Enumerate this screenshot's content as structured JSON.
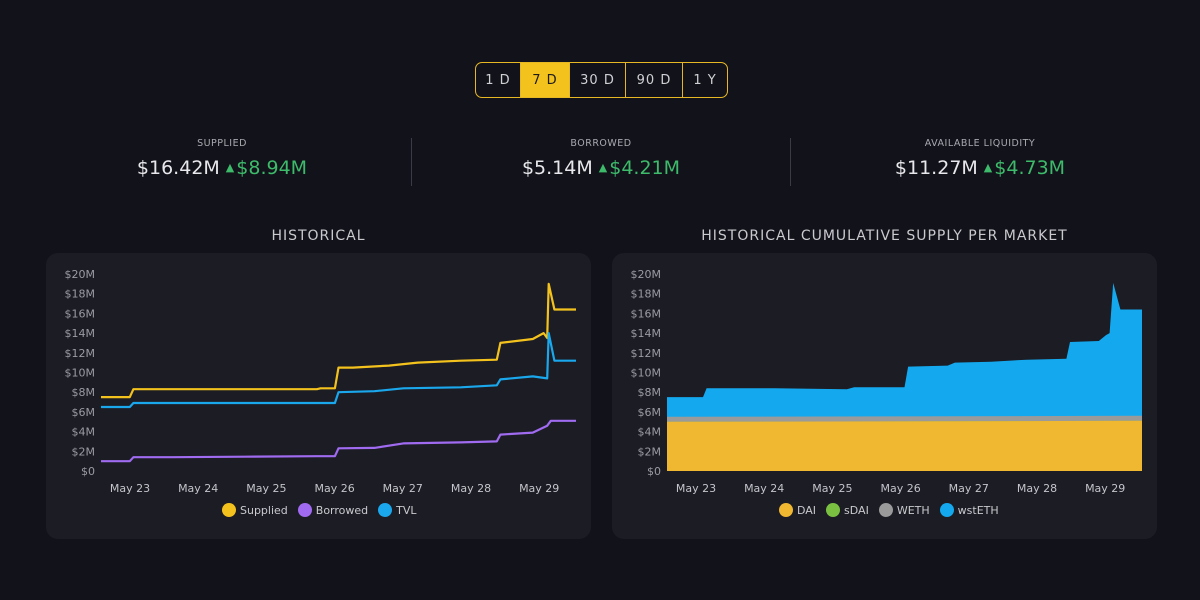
{
  "range": {
    "options": [
      "1 D",
      "7 D",
      "30 D",
      "90 D",
      "1 Y"
    ],
    "selected": "7 D"
  },
  "stats": [
    {
      "label": "SUPPLIED",
      "value": "$16.42M",
      "change": "$8.94M"
    },
    {
      "label": "BORROWED",
      "value": "$5.14M",
      "change": "$4.21M"
    },
    {
      "label": "AVAILABLE LIQUIDITY",
      "value": "$11.27M",
      "change": "$4.73M"
    }
  ],
  "colors": {
    "accent": "#f4c21d",
    "positive": "#3dbb6a",
    "supplied": "#f4c21d",
    "borrowed": "#a06bf0",
    "tvl": "#1ba7ec",
    "dai": "#f0b731",
    "sdai": "#7ac142",
    "weth": "#9a9a9a",
    "wsteth": "#14a9ee"
  },
  "chart_data": [
    {
      "type": "line",
      "title": "HISTORICAL",
      "categories": [
        "May 23",
        "May 24",
        "May 25",
        "May 26",
        "May 27",
        "May 28",
        "May 29"
      ],
      "yticks": [
        "$0",
        "$2M",
        "$4M",
        "$6M",
        "$8M",
        "$10M",
        "$12M",
        "$14M",
        "$16M",
        "$18M",
        "$20M"
      ],
      "ylim": [
        0,
        20
      ],
      "xlim": [
        0,
        6.6
      ],
      "legend": [
        "Supplied",
        "Borrowed",
        "TVL"
      ],
      "series": [
        {
          "name": "Supplied",
          "color": "#f4c21d",
          "points": [
            [
              0,
              7.5
            ],
            [
              0.4,
              7.5
            ],
            [
              0.45,
              8.3
            ],
            [
              1.0,
              8.3
            ],
            [
              2.0,
              8.3
            ],
            [
              3.0,
              8.3
            ],
            [
              3.05,
              8.4
            ],
            [
              3.25,
              8.4
            ],
            [
              3.3,
              10.5
            ],
            [
              3.5,
              10.5
            ],
            [
              4.0,
              10.7
            ],
            [
              4.4,
              11.0
            ],
            [
              5.0,
              11.2
            ],
            [
              5.5,
              11.3
            ],
            [
              5.55,
              13.0
            ],
            [
              6.0,
              13.4
            ],
            [
              6.15,
              14.0
            ],
            [
              6.2,
              13.5
            ],
            [
              6.22,
              19.0
            ],
            [
              6.3,
              16.4
            ],
            [
              6.6,
              16.4
            ]
          ]
        },
        {
          "name": "Borrowed",
          "color": "#a06bf0",
          "points": [
            [
              0,
              1.0
            ],
            [
              0.4,
              1.0
            ],
            [
              0.45,
              1.4
            ],
            [
              1.0,
              1.4
            ],
            [
              2.0,
              1.45
            ],
            [
              3.0,
              1.5
            ],
            [
              3.25,
              1.5
            ],
            [
              3.3,
              2.3
            ],
            [
              3.8,
              2.35
            ],
            [
              4.2,
              2.8
            ],
            [
              5.0,
              2.9
            ],
            [
              5.5,
              3.0
            ],
            [
              5.55,
              3.7
            ],
            [
              6.0,
              3.9
            ],
            [
              6.2,
              4.6
            ],
            [
              6.25,
              5.1
            ],
            [
              6.6,
              5.1
            ]
          ]
        },
        {
          "name": "TVL",
          "color": "#1ba7ec",
          "points": [
            [
              0,
              6.5
            ],
            [
              0.4,
              6.5
            ],
            [
              0.45,
              6.9
            ],
            [
              1.0,
              6.9
            ],
            [
              2.0,
              6.9
            ],
            [
              3.0,
              6.9
            ],
            [
              3.25,
              6.9
            ],
            [
              3.3,
              8.0
            ],
            [
              3.8,
              8.1
            ],
            [
              4.2,
              8.4
            ],
            [
              5.0,
              8.5
            ],
            [
              5.5,
              8.7
            ],
            [
              5.55,
              9.3
            ],
            [
              6.0,
              9.6
            ],
            [
              6.2,
              9.4
            ],
            [
              6.22,
              14.0
            ],
            [
              6.3,
              11.2
            ],
            [
              6.6,
              11.2
            ]
          ]
        }
      ]
    },
    {
      "type": "area",
      "title": "HISTORICAL CUMULATIVE SUPPLY PER MARKET",
      "categories": [
        "May 23",
        "May 24",
        "May 25",
        "May 26",
        "May 27",
        "May 28",
        "May 29"
      ],
      "yticks": [
        "$0",
        "$2M",
        "$4M",
        "$6M",
        "$8M",
        "$10M",
        "$12M",
        "$14M",
        "$16M",
        "$18M",
        "$20M"
      ],
      "ylim": [
        0,
        20
      ],
      "xlim": [
        0,
        6.6
      ],
      "legend": [
        "DAI",
        "sDAI",
        "WETH",
        "wstETH"
      ],
      "series": [
        {
          "name": "DAI",
          "color": "#f0b731",
          "points": [
            [
              0,
              5.0
            ],
            [
              6.6,
              5.1
            ]
          ]
        },
        {
          "name": "sDAI",
          "color": "#7ac142",
          "points": [
            [
              0,
              5.0
            ],
            [
              6.6,
              5.1
            ]
          ]
        },
        {
          "name": "WETH",
          "color": "#9a9a9a",
          "points": [
            [
              0,
              5.5
            ],
            [
              6.6,
              5.6
            ]
          ]
        },
        {
          "name": "wstETH",
          "color": "#14a9ee",
          "points": [
            [
              0,
              7.5
            ],
            [
              0.5,
              7.5
            ],
            [
              0.55,
              8.4
            ],
            [
              1.5,
              8.4
            ],
            [
              2.5,
              8.3
            ],
            [
              2.6,
              8.5
            ],
            [
              3.3,
              8.5
            ],
            [
              3.35,
              10.6
            ],
            [
              3.9,
              10.7
            ],
            [
              4.0,
              11.0
            ],
            [
              4.5,
              11.1
            ],
            [
              5.0,
              11.3
            ],
            [
              5.55,
              11.4
            ],
            [
              5.6,
              13.1
            ],
            [
              6.0,
              13.2
            ],
            [
              6.1,
              13.8
            ],
            [
              6.15,
              14.0
            ],
            [
              6.2,
              19.1
            ],
            [
              6.3,
              16.4
            ],
            [
              6.6,
              16.4
            ]
          ]
        }
      ]
    }
  ]
}
